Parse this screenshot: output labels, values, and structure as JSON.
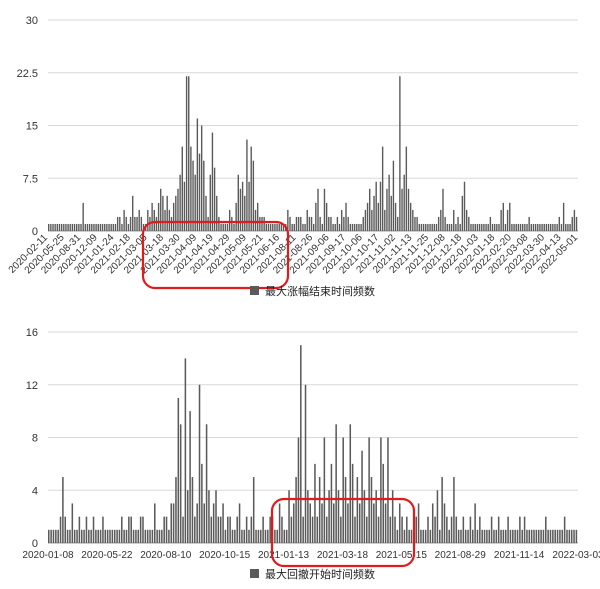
{
  "chart_data": [
    {
      "type": "bar",
      "series": [
        {
          "name": "最大涨幅结束时间频数",
          "color": "#5a5a5a"
        }
      ],
      "ylim": [
        0,
        30
      ],
      "yticks": [
        "0",
        "7.5",
        "15",
        "22.5",
        "30"
      ],
      "grid": true,
      "legend": "bottom-center",
      "highlight_box": {
        "from": "2021-03-18",
        "to": "2021-06-16",
        "color": "#e01b1b"
      },
      "xticks": [
        "2020-02-11",
        "2020-05-25",
        "2020-08-31",
        "2020-12-09",
        "2021-01-24",
        "2021-02-18",
        "2021-03-05",
        "2021-03-18",
        "2021-03-30",
        "2021-04-09",
        "2021-04-19",
        "2021-04-29",
        "2021-05-09",
        "2021-05-21",
        "2021-06-16",
        "2021-08-11",
        "2021-08-26",
        "2021-09-06",
        "2021-09-17",
        "2021-10-06",
        "2021-10-17",
        "2021-11-02",
        "2021-11-13",
        "2021-11-25",
        "2021-12-08",
        "2021-12-18",
        "2022-01-03",
        "2022-01-18",
        "2022-02-20",
        "2022-03-08",
        "2022-03-30",
        "2022-04-13",
        "2022-05-01"
      ],
      "values": [
        1,
        1,
        1,
        1,
        1,
        1,
        1,
        1,
        1,
        1,
        1,
        1,
        1,
        1,
        1,
        1,
        4,
        1,
        1,
        1,
        1,
        1,
        1,
        1,
        1,
        1,
        1,
        1,
        1,
        1,
        1,
        1,
        2,
        2,
        1,
        3,
        2,
        1,
        2,
        5,
        2,
        2,
        3,
        2,
        1,
        1,
        3,
        2,
        4,
        3,
        2,
        4,
        6,
        5,
        3,
        5,
        3,
        2,
        4,
        5,
        6,
        8,
        12,
        7,
        22,
        22,
        12,
        10,
        8,
        16,
        11,
        15,
        10,
        5,
        2,
        8,
        14,
        9,
        5,
        2,
        1,
        1,
        1,
        1,
        3,
        2,
        1,
        4,
        8,
        6,
        7,
        5,
        13,
        7,
        12,
        10,
        3,
        4,
        2,
        2,
        2,
        1,
        1,
        1,
        1,
        1,
        1,
        1,
        1,
        1,
        1,
        3,
        2,
        1,
        1,
        2,
        2,
        2,
        1,
        1,
        3,
        2,
        2,
        1,
        4,
        6,
        2,
        1,
        6,
        4,
        2,
        2,
        1,
        1,
        2,
        1,
        3,
        2,
        4,
        2,
        1,
        1,
        1,
        1,
        1,
        1,
        2,
        3,
        4,
        6,
        3,
        5,
        7,
        4,
        7,
        12,
        3,
        6,
        8,
        5,
        10,
        4,
        2,
        22,
        6,
        8,
        12,
        6,
        4,
        3,
        2,
        2,
        1,
        1,
        1,
        1,
        1,
        1,
        1,
        1,
        1,
        2,
        3,
        6,
        2,
        1,
        1,
        1,
        3,
        1,
        2,
        1,
        5,
        7,
        3,
        2,
        1,
        1,
        1,
        1,
        1,
        1,
        1,
        1,
        1,
        2,
        1,
        1,
        1,
        1,
        3,
        4,
        1,
        3,
        4,
        1,
        1,
        1,
        1,
        1,
        1,
        1,
        1,
        2,
        1,
        1,
        1,
        1,
        1,
        1,
        1,
        1,
        1,
        1,
        1,
        1,
        1,
        2,
        1,
        4,
        1,
        1,
        1,
        2,
        3,
        2
      ]
    },
    {
      "type": "bar",
      "series": [
        {
          "name": "最大回撤开始时间频数",
          "color": "#5a5a5a"
        }
      ],
      "ylim": [
        0,
        16
      ],
      "yticks": [
        "0",
        "4",
        "8",
        "12",
        "16"
      ],
      "grid": true,
      "legend": "bottom-center",
      "highlight_box": {
        "from": "2021-01-13",
        "to": "2021-05-15",
        "color": "#e01b1b"
      },
      "xticks": [
        "2020-01-08",
        "2020-05-22",
        "2020-08-10",
        "2020-10-15",
        "2021-01-13",
        "2021-03-18",
        "2021-05-15",
        "2021-08-29",
        "2021-11-14",
        "2022-03-03"
      ],
      "values": [
        1,
        1,
        1,
        1,
        1,
        2,
        5,
        2,
        1,
        1,
        3,
        1,
        1,
        2,
        1,
        1,
        2,
        1,
        1,
        2,
        1,
        1,
        1,
        2,
        1,
        1,
        1,
        1,
        1,
        1,
        1,
        2,
        1,
        1,
        2,
        2,
        1,
        1,
        1,
        2,
        2,
        1,
        1,
        1,
        1,
        3,
        1,
        1,
        1,
        2,
        2,
        1,
        3,
        3,
        5,
        11,
        9,
        2,
        14,
        4,
        10,
        5,
        2,
        3,
        12,
        6,
        3,
        9,
        4,
        2,
        3,
        4,
        2,
        2,
        3,
        1,
        2,
        2,
        1,
        1,
        2,
        3,
        1,
        1,
        2,
        1,
        2,
        5,
        1,
        1,
        1,
        2,
        1,
        1,
        2,
        2,
        1,
        1,
        3,
        2,
        1,
        1,
        4,
        2,
        3,
        5,
        8,
        15,
        2,
        12,
        4,
        3,
        2,
        6,
        2,
        5,
        3,
        8,
        2,
        4,
        6,
        3,
        9,
        4,
        2,
        8,
        5,
        3,
        9,
        6,
        2,
        5,
        3,
        7,
        4,
        2,
        8,
        5,
        3,
        4,
        2,
        8,
        6,
        3,
        8,
        2,
        4,
        2,
        1,
        3,
        2,
        1,
        2,
        1,
        1,
        1,
        2,
        3,
        1,
        1,
        1,
        2,
        1,
        3,
        2,
        4,
        1,
        5,
        3,
        2,
        1,
        2,
        5,
        2,
        1,
        1,
        2,
        1,
        1,
        2,
        1,
        3,
        1,
        2,
        1,
        1,
        1,
        1,
        2,
        1,
        1,
        2,
        1,
        1,
        1,
        2,
        1,
        1,
        1,
        1,
        2,
        1,
        2,
        1,
        1,
        1,
        1,
        1,
        1,
        1,
        1,
        2,
        1,
        1,
        1,
        1,
        1,
        1,
        1,
        2,
        1,
        1,
        1,
        1,
        1
      ]
    }
  ]
}
